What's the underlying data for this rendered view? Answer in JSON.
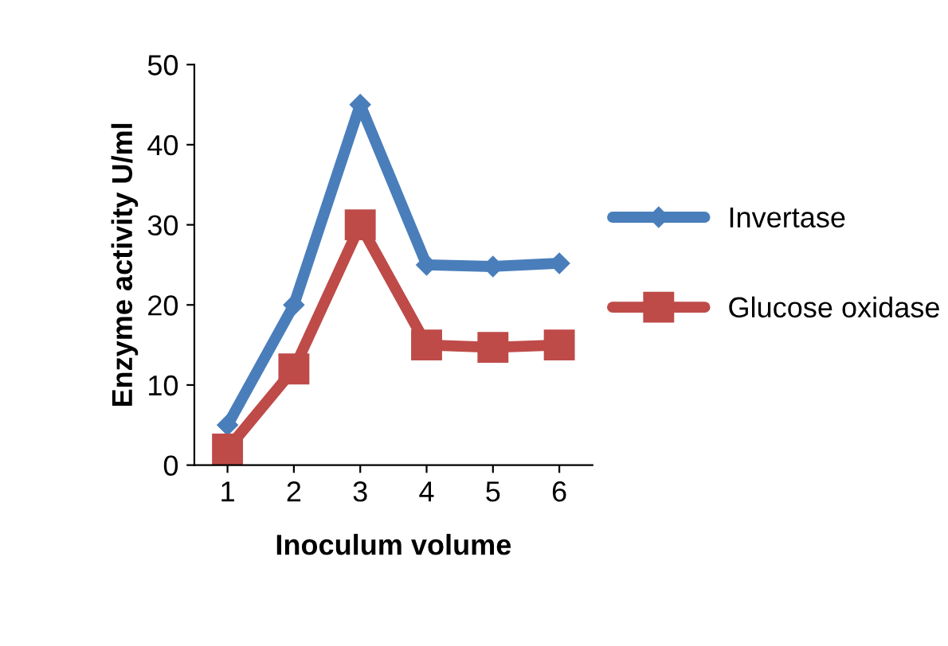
{
  "chart_data": {
    "type": "line",
    "xlabel": "Inoculum volume",
    "ylabel": "Enzyme activity U/ml",
    "categories": [
      "1",
      "2",
      "3",
      "4",
      "5",
      "6"
    ],
    "series": [
      {
        "name": "Invertase",
        "color": "#4a7ebb",
        "marker": "diamond",
        "values": [
          5,
          20,
          45,
          25,
          24.8,
          25.2
        ]
      },
      {
        "name": "Glucose oxidase",
        "color": "#be4b48",
        "marker": "square",
        "values": [
          2,
          12,
          30,
          15,
          14.7,
          15
        ]
      }
    ],
    "ylim": [
      0,
      50
    ],
    "yticks": [
      0,
      10,
      20,
      30,
      40,
      50
    ],
    "grid": false,
    "legend": "right",
    "line_style": "solid"
  }
}
